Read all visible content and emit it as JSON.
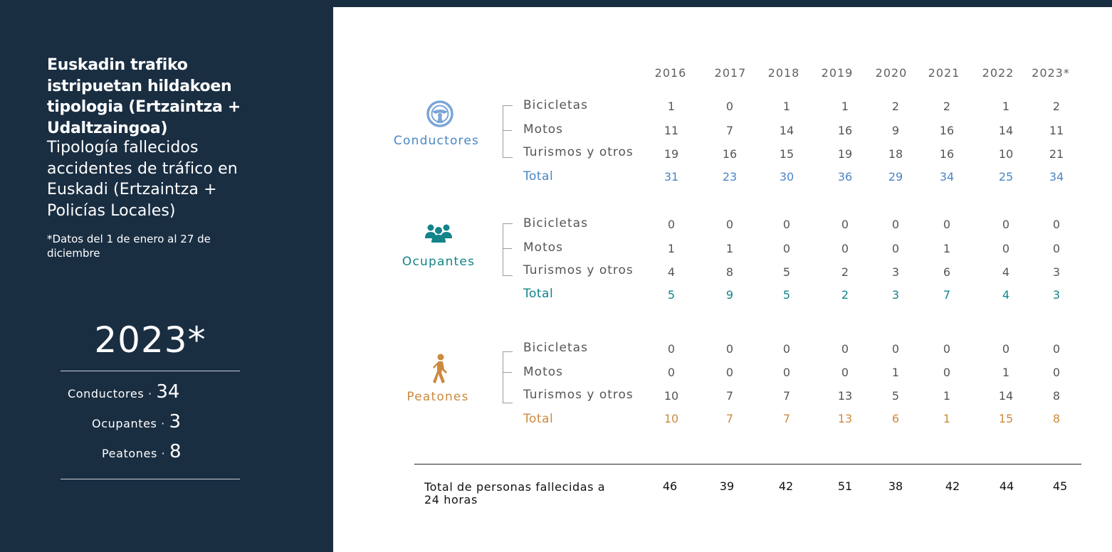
{
  "sidebar": {
    "title_eu": "Euskadin trafiko istripuetan hildakoen tipologia (Ertzaintza + Udaltzaingoa)",
    "title_es": "Tipología fallecidos accidentes de tráfico en Euskadi (Ertzaintza + Policías Locales)",
    "footnote": "*Datos del 1 de enero al 27 de diciembre",
    "year": "2023*",
    "summary": [
      {
        "label": "Conductores ·",
        "value": "34"
      },
      {
        "label": "Ocupantes ·",
        "value": "3"
      },
      {
        "label": "Peatones ·",
        "value": "8"
      }
    ]
  },
  "table": {
    "years": [
      "2016",
      "2017",
      "2018",
      "2019",
      "2020",
      "2021",
      "2022",
      "2023*"
    ],
    "groups": [
      {
        "name": "Conductores",
        "icon": "steering-wheel-icon",
        "color": "#4a86c5",
        "rows": [
          {
            "label": "Bicicletas",
            "values": [
              "1",
              "0",
              "1",
              "1",
              "2",
              "2",
              "1",
              "2"
            ]
          },
          {
            "label": "Motos",
            "values": [
              "11",
              "7",
              "14",
              "16",
              "9",
              "16",
              "14",
              "11"
            ]
          },
          {
            "label": "Turismos y otros",
            "values": [
              "19",
              "16",
              "15",
              "19",
              "18",
              "16",
              "10",
              "21"
            ]
          }
        ],
        "total": {
          "label": "Total",
          "values": [
            "31",
            "23",
            "30",
            "36",
            "29",
            "34",
            "25",
            "34"
          ]
        }
      },
      {
        "name": "Ocupantes",
        "icon": "group-people-icon",
        "color": "#12848a",
        "rows": [
          {
            "label": "Bicicletas",
            "values": [
              "0",
              "0",
              "0",
              "0",
              "0",
              "0",
              "0",
              "0"
            ]
          },
          {
            "label": "Motos",
            "values": [
              "1",
              "1",
              "0",
              "0",
              "0",
              "1",
              "0",
              "0"
            ]
          },
          {
            "label": "Turismos y otros",
            "values": [
              "4",
              "8",
              "5",
              "2",
              "3",
              "6",
              "4",
              "3"
            ]
          }
        ],
        "total": {
          "label": "Total",
          "values": [
            "5",
            "9",
            "5",
            "2",
            "3",
            "7",
            "4",
            "3"
          ]
        }
      },
      {
        "name": "Peatones",
        "icon": "pedestrian-icon",
        "color": "#cc8a3e",
        "rows": [
          {
            "label": "Bicicletas",
            "values": [
              "0",
              "0",
              "0",
              "0",
              "0",
              "0",
              "0",
              "0"
            ]
          },
          {
            "label": "Motos",
            "values": [
              "0",
              "0",
              "0",
              "0",
              "1",
              "0",
              "1",
              "0"
            ]
          },
          {
            "label": "Turismos y otros",
            "values": [
              "10",
              "7",
              "7",
              "13",
              "5",
              "1",
              "14",
              "8"
            ]
          }
        ],
        "total": {
          "label": "Total",
          "values": [
            "10",
            "7",
            "7",
            "13",
            "6",
            "1",
            "15",
            "8"
          ]
        }
      }
    ],
    "grand_total": {
      "label": "Total de personas fallecidas a 24 horas",
      "values": [
        "46",
        "39",
        "42",
        "51",
        "38",
        "42",
        "44",
        "45"
      ]
    }
  }
}
